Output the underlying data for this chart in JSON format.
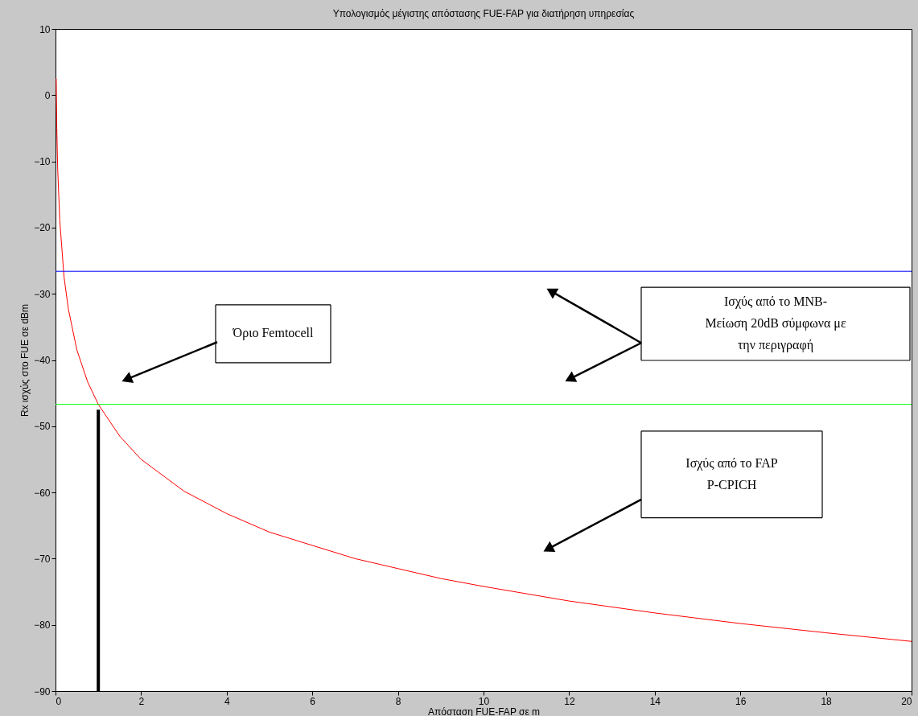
{
  "chart_data": {
    "type": "line",
    "title": "Υπολογισμός μέγιστης απόστασης FUE-FAP για διατήρηση υπηρεσίας",
    "xlabel": "Απόσταση FUE-FAP σε m",
    "ylabel": "Rx ισχύς στο FUE σε dBm",
    "x": [
      0.016,
      0.03,
      0.05,
      0.1,
      0.2,
      0.3,
      0.5,
      0.75,
      1,
      1.5,
      2,
      3,
      4,
      5,
      6,
      7,
      8,
      9,
      10,
      12,
      14,
      16,
      18,
      20
    ],
    "series": [
      {
        "color": "#ff0000",
        "values": [
          2.5,
          -5,
          -11,
          -19,
          -27.5,
          -32.3,
          -38.5,
          -43.3,
          -46.7,
          -51.5,
          -55,
          -59.8,
          -63.2,
          -66,
          -68,
          -70,
          -71.5,
          -73,
          -74.2,
          -76.4,
          -78.2,
          -79.8,
          -81.2,
          -82.5
        ]
      },
      {
        "color": "#000000",
        "x": [
          1,
          1
        ],
        "values": [
          -90,
          -47.5
        ]
      }
    ],
    "ref_lines": [
      {
        "axis": "y",
        "value": -26.6,
        "color": "#0000ff"
      },
      {
        "axis": "y",
        "value": -46.7,
        "color": "#00ff00"
      }
    ],
    "annotations": [
      "Όριο Femtocell",
      "Ισχύς από το MNB-\nΜείωση 20dB σύμφωνα με\nτην περιγραφή",
      "Ισχύς από το FAP\nP-CPICH"
    ],
    "xlim": [
      0,
      20
    ],
    "ylim": [
      -90,
      10
    ],
    "xticks": [
      0,
      2,
      4,
      6,
      8,
      10,
      12,
      14,
      16,
      18,
      20
    ],
    "yticks": [
      -90,
      -80,
      -70,
      -60,
      -50,
      -40,
      -30,
      -20,
      -10,
      0,
      10
    ],
    "grid": false,
    "marker": "none",
    "line_style": "solid"
  }
}
